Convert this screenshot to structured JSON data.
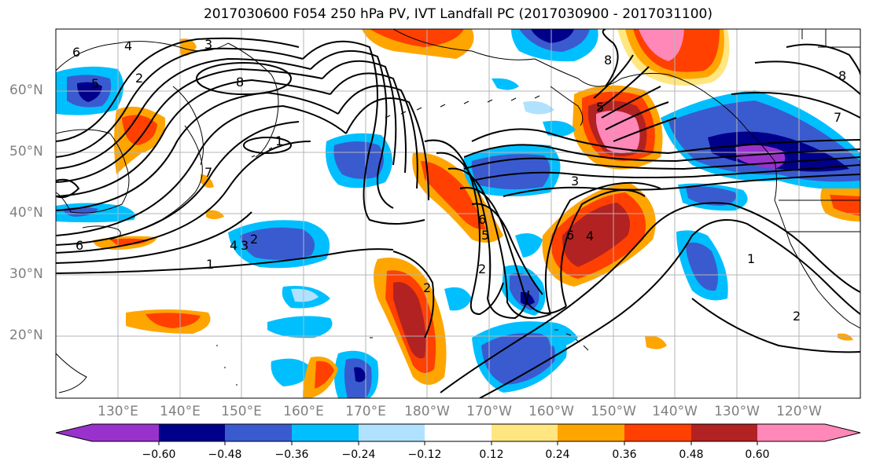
{
  "title": "2017030600 F054 250 hPa PV, IVT Landfall PC (2017030900 - 2017031100)",
  "latitude_labels": [
    "60°N",
    "50°N",
    "40°N",
    "30°N",
    "20°N"
  ],
  "longitude_labels": [
    "130°E",
    "140°E",
    "150°E",
    "160°E",
    "170°E",
    "180°W",
    "170°W",
    "160°W",
    "150°W",
    "140°W",
    "130°W",
    "120°W"
  ],
  "contour_labels": [
    "6",
    "4",
    "3",
    "2",
    "5",
    "8",
    "7",
    "1",
    "4",
    "3",
    "2",
    "6",
    "1",
    "3",
    "5",
    "2",
    "2",
    "6",
    "4",
    "8",
    "1",
    "2",
    "7",
    "6",
    "8",
    "5"
  ],
  "colorbar": {
    "tick_labels": [
      "−0.60",
      "−0.48",
      "−0.36",
      "−0.24",
      "−0.12",
      "0.12",
      "0.24",
      "0.36",
      "0.48",
      "0.60"
    ],
    "colors": [
      "#9932cc",
      "#00008b",
      "#3a5bcf",
      "#00bfff",
      "#b0e2ff",
      "#ffffff",
      "#ffe680",
      "#ffa500",
      "#ff4000",
      "#b22222",
      "#ff88b8"
    ]
  },
  "fill_colors": {
    "neg_lightblue": "#b0e2ff",
    "neg_cyan": "#00bfff",
    "neg_blue": "#3a5bcf",
    "neg_navy": "#00008b",
    "neg_purple": "#9932cc",
    "pos_yellow": "#ffe680",
    "pos_orange": "#ffa500",
    "pos_redorange": "#ff4000",
    "pos_darkred": "#b22222",
    "pos_pink": "#ff88b8"
  }
}
